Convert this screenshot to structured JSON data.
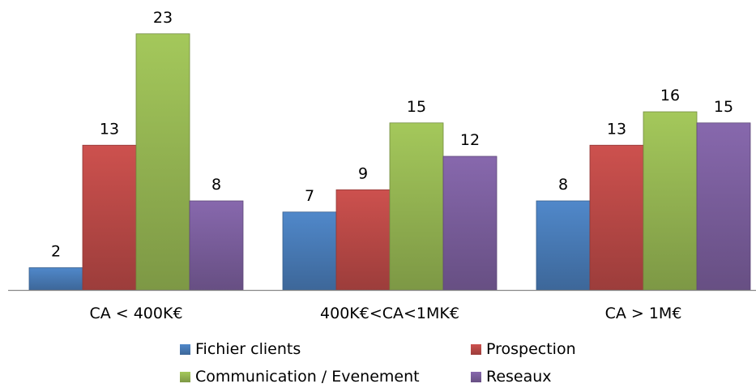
{
  "chart_data": {
    "type": "bar",
    "categories": [
      "CA < 400K€",
      "400K€<CA<1MK€",
      "CA > 1M€"
    ],
    "series": [
      {
        "name": "Fichier clients",
        "values": [
          2,
          7,
          8
        ],
        "color": "#4a7ebb"
      },
      {
        "name": "Prospection",
        "values": [
          13,
          9,
          13
        ],
        "color": "#be4b48"
      },
      {
        "name": "Communication / Evenement",
        "values": [
          23,
          15,
          16
        ],
        "color": "#98b954"
      },
      {
        "name": "Reseaux",
        "values": [
          8,
          12,
          15
        ],
        "color": "#7d60a0"
      }
    ],
    "ylim": [
      0,
      23
    ],
    "grid": false,
    "legend_position": "bottom",
    "data_labels": true
  }
}
